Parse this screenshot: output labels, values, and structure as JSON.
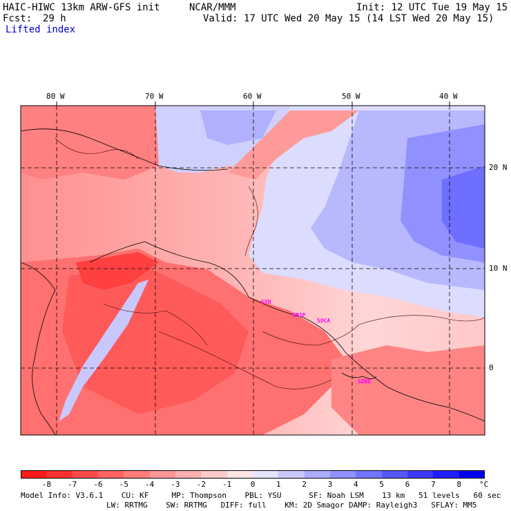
{
  "header": {
    "model_title": "HAIC-HIWC 13km ARW-GFS init",
    "org": "NCAR/MMM",
    "init": "Init: 12 UTC Tue 19 May 15",
    "fcst_label": "Fcst:",
    "fcst_value": "29 h",
    "valid": "Valid: 17 UTC Wed 20 May 15 (14 LST Wed 20 May 15)",
    "field": "Lifted index"
  },
  "map": {
    "longitude_labels": [
      "80 W",
      "70 W",
      "60 W",
      "50 W",
      "40 W"
    ],
    "latitude_labels": [
      "20 N",
      "10 N",
      "0"
    ],
    "stations": [
      "SYN",
      "SMJP",
      "SOCA",
      "SBBE"
    ]
  },
  "colorbar": {
    "unit": "°C",
    "levels": [
      "-8",
      "-7",
      "-6",
      "-5",
      "-4",
      "-3",
      "-2",
      "-1",
      "0",
      "1",
      "2",
      "3",
      "4",
      "5",
      "6",
      "7",
      "8"
    ],
    "colors": [
      "#ff1a1a",
      "#ff3030",
      "#ff4a4a",
      "#ff6262",
      "#ff7c7c",
      "#ff9696",
      "#ffb0b0",
      "#ffcaca",
      "#ffe4e4",
      "#e4e4ff",
      "#c8c8ff",
      "#acacff",
      "#9090ff",
      "#7474ff",
      "#5858ff",
      "#3c3cff",
      "#2020ff",
      "#0000ee"
    ]
  },
  "model_info": {
    "line1": "Model Info: V3.6.1    CU: KF     MP: Thompson    PBL: YSU      SF: Noah LSM    13 km   51 levels   60 sec",
    "line2": "LW: RRTMG    SW: RRTMG   DIFF: full    KM: 2D Smagor DAMP: Rayleigh3   SFLAY: MM5"
  }
}
